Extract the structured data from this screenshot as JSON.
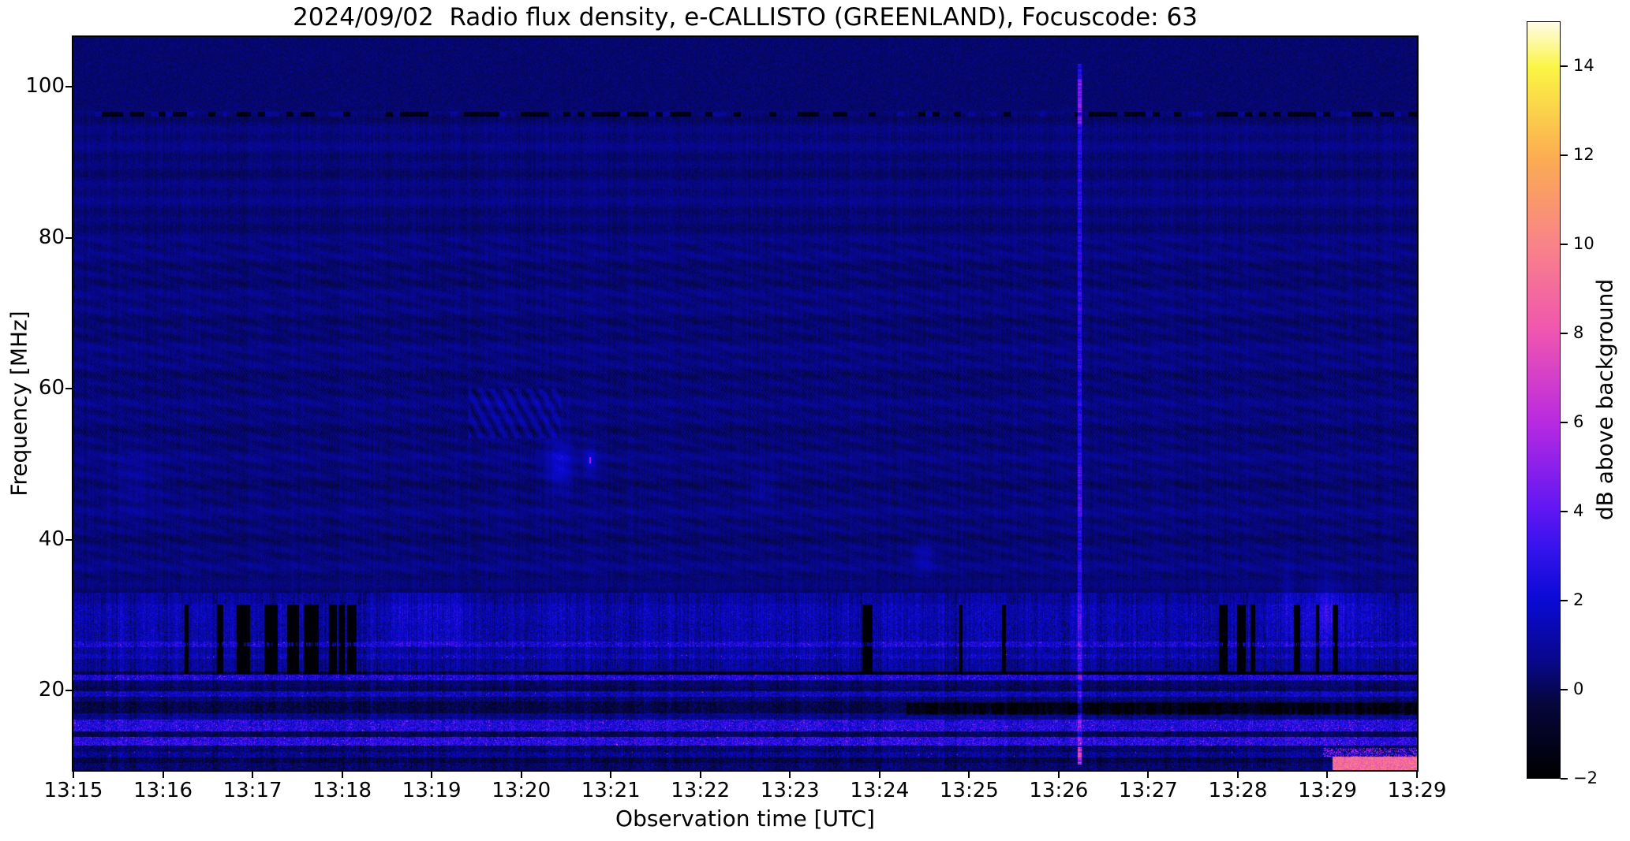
{
  "figure": {
    "title": "2024/09/02  Radio flux density, e-CALLISTO (GREENLAND), Focuscode: 63",
    "xlabel": "Observation time [UTC]",
    "ylabel": "Frequency [MHz]",
    "colorbar_label": "dB above background"
  },
  "chart_data": {
    "type": "heatmap",
    "subtype": "radio-spectrogram",
    "title": "2024/09/02  Radio flux density, e-CALLISTO (GREENLAND), Focuscode: 63",
    "xlabel": "Observation time [UTC]",
    "ylabel": "Frequency [MHz]",
    "x_tick_labels": [
      "13:15",
      "13:16",
      "13:17",
      "13:18",
      "13:19",
      "13:20",
      "13:21",
      "13:22",
      "13:23",
      "13:24",
      "13:25",
      "13:26",
      "13:27",
      "13:28",
      "13:29",
      "13:29"
    ],
    "x_range_minutes": [
      0,
      15
    ],
    "y_ticks": [
      20,
      40,
      60,
      80,
      100
    ],
    "y_range_mhz": [
      9.5,
      106.6
    ],
    "grid": false,
    "legend": "colorbar-right",
    "colorbar": {
      "label": "dB above background",
      "ticks": [
        {
          "value": 14,
          "label": "14"
        },
        {
          "value": 12,
          "label": "12"
        },
        {
          "value": 10,
          "label": "10"
        },
        {
          "value": 8,
          "label": "8"
        },
        {
          "value": 6,
          "label": "6"
        },
        {
          "value": 4,
          "label": "4"
        },
        {
          "value": 2,
          "label": "2"
        },
        {
          "value": 0,
          "label": "0"
        },
        {
          "value": -2,
          "label": "−2"
        }
      ],
      "range": [
        -2,
        15
      ],
      "stops": [
        [
          0.0,
          "#000000"
        ],
        [
          0.1,
          "#06063e"
        ],
        [
          0.155,
          "#08088c"
        ],
        [
          0.235,
          "#0a0ad4"
        ],
        [
          0.3,
          "#3312ec"
        ],
        [
          0.36,
          "#6317f2"
        ],
        [
          0.47,
          "#b82ae0"
        ],
        [
          0.59,
          "#ef55b0"
        ],
        [
          0.7,
          "#f8818a"
        ],
        [
          0.82,
          "#fbac52"
        ],
        [
          0.94,
          "#fbf544"
        ],
        [
          1.0,
          "#fffce8"
        ]
      ]
    },
    "background_db": 0.45,
    "features": {
      "dashed_dark_line": {
        "f": [
          96.1,
          96.65
        ],
        "amp": -1.7
      },
      "fringe_band": {
        "f": [
          53,
          63
        ],
        "amp": 0.3
      },
      "diagonal_striations": {
        "f": [
          35,
          80
        ],
        "amp": 0.16
      },
      "rows": [
        {
          "f": [
            31.5,
            33.0
          ],
          "amp": 0.5,
          "spk": 0.5,
          "dots": 0
        },
        {
          "f": [
            29.0,
            31.5
          ],
          "amp": 0.9,
          "spk": 0.8,
          "dots": 0
        },
        {
          "f": [
            26.5,
            29.0
          ],
          "amp": 0.75,
          "spk": 0.9,
          "dots": 0
        },
        {
          "f": [
            25.8,
            26.5
          ],
          "amp": 1.7,
          "spk": 1.3,
          "dots": 0.004
        },
        {
          "f": [
            24.8,
            25.8
          ],
          "amp": 0.6,
          "spk": 0.7,
          "dots": 0
        },
        {
          "f": [
            24.2,
            24.8
          ],
          "amp": 1.1,
          "spk": 1.0,
          "dots": 0.002
        },
        {
          "f": [
            22.6,
            24.2
          ],
          "amp": 0.45,
          "spk": 0.7,
          "dots": 0
        },
        {
          "f": [
            22.1,
            22.6
          ],
          "amp": -0.3,
          "spk": 0.5,
          "dots": 0
        },
        {
          "f": [
            21.4,
            22.1
          ],
          "amp": 1.9,
          "spk": 1.4,
          "dots": 0.012
        },
        {
          "f": [
            20.6,
            21.4
          ],
          "amp": -0.2,
          "spk": 0.5,
          "dots": 0
        },
        {
          "f": [
            19.9,
            20.6
          ],
          "amp": -0.5,
          "spk": 0.5,
          "dots": 0
        },
        {
          "f": [
            19.2,
            19.9
          ],
          "amp": 1.2,
          "spk": 1.1,
          "dots": 0.002
        },
        {
          "f": [
            18.6,
            19.2
          ],
          "amp": 0.0,
          "spk": 0.7,
          "dots": 0
        },
        {
          "f": [
            17.0,
            18.6
          ],
          "amp": -0.7,
          "spk": 0.6,
          "dots": 0
        },
        {
          "f": [
            16.2,
            17.0
          ],
          "amp": 0.3,
          "spk": 0.6,
          "dots": 0
        },
        {
          "f": [
            14.6,
            16.2
          ],
          "amp": 2.1,
          "spk": 1.5,
          "dots": 0.01
        },
        {
          "f": [
            13.9,
            14.6
          ],
          "amp": -0.5,
          "spk": 0.6,
          "dots": 0
        },
        {
          "f": [
            12.7,
            13.9
          ],
          "amp": 2.3,
          "spk": 1.5,
          "dots": 0.012
        },
        {
          "f": [
            11.9,
            12.7
          ],
          "amp": -0.2,
          "spk": 0.8,
          "dots": 0
        },
        {
          "f": [
            11.2,
            11.9
          ],
          "amp": 0.4,
          "spk": 1.0,
          "dots": 0.002
        },
        {
          "f": [
            10.4,
            11.2
          ],
          "amp": -0.7,
          "spk": 0.5,
          "dots": 0
        },
        {
          "f": [
            9.5,
            10.4
          ],
          "amp": -0.2,
          "spk": 0.7,
          "dots": 0
        }
      ],
      "dropout_bars": {
        "f": [
          22.2,
          31.4
        ],
        "keep_bright_f": [
          25.85,
          26.45
        ],
        "groups": [
          [
            1.24,
            1.29
          ],
          [
            1.6,
            1.67
          ],
          [
            1.82,
            1.97
          ],
          [
            2.13,
            2.28
          ],
          [
            2.39,
            2.52
          ],
          [
            2.57,
            2.74
          ],
          [
            2.85,
            2.94
          ],
          [
            2.96,
            3.03
          ],
          [
            3.06,
            3.16
          ],
          [
            8.81,
            8.92
          ],
          [
            9.89,
            9.93
          ],
          [
            10.37,
            10.41
          ],
          [
            12.79,
            12.89
          ],
          [
            12.99,
            13.09
          ],
          [
            13.14,
            13.19
          ],
          [
            13.63,
            13.7
          ],
          [
            13.87,
            13.91
          ],
          [
            14.06,
            14.12
          ]
        ]
      },
      "vertical_line": {
        "t": 11.23,
        "f": [
          10.2,
          103
        ],
        "amp": 2.3,
        "hot": [
          [
            95,
            101,
            4.5
          ],
          [
            43,
            50,
            3.2
          ],
          [
            10.2,
            12.5,
            6.5
          ]
        ]
      },
      "blobs": [
        {
          "t": 5.43,
          "f": 50.0,
          "st": 0.1,
          "sf": 2.2,
          "amp": 1.5,
          "dot": 0
        },
        {
          "t": 5.77,
          "f": 50.5,
          "st": 0.05,
          "sf": 1.2,
          "amp": 1.3,
          "dot": 1
        },
        {
          "t": 0.72,
          "f": 47.5,
          "st": 0.2,
          "sf": 3.0,
          "amp": 0.45,
          "dot": 0
        },
        {
          "t": 7.69,
          "f": 46.8,
          "st": 0.1,
          "sf": 1.5,
          "amp": 0.5,
          "dot": 0
        },
        {
          "t": 9.49,
          "f": 37.6,
          "st": 0.08,
          "sf": 1.5,
          "amp": 0.9,
          "dot": 0
        },
        {
          "t": 14.0,
          "f": 30.5,
          "st": 0.12,
          "sf": 2.5,
          "amp": 1.1,
          "dot": 0
        },
        {
          "t": 13.55,
          "f": 33.0,
          "st": 0.05,
          "sf": 3.0,
          "amp": 0.5,
          "dot": 0
        }
      ],
      "wavy_patch": {
        "t": [
          4.41,
          5.44
        ],
        "f": [
          53.5,
          60
        ],
        "amp": 0.55
      },
      "bright_patch": {
        "t": [
          3.55,
          4.35
        ],
        "f": [
          26,
          33
        ],
        "amp": 0.5
      },
      "right_light_patch": {
        "t": [
          13.3,
          14.6
        ],
        "f": [
          27,
          33
        ],
        "amp": 0.35
      },
      "dark_line_22": {
        "f": [
          22.15,
          22.5
        ],
        "t_start": 5.2,
        "level": -1.6
      },
      "dark_band_17_right": {
        "f": [
          16.8,
          18.4
        ],
        "t_start": 9.3,
        "amp": -0.9
      },
      "bottom_right_hot": {
        "t_start": 14.06,
        "f_max": 11.3,
        "db": 9.0
      },
      "bottom_right_speckle": {
        "t_start": 13.95,
        "f": [
          11.3,
          12.4
        ],
        "db": 5
      }
    }
  }
}
